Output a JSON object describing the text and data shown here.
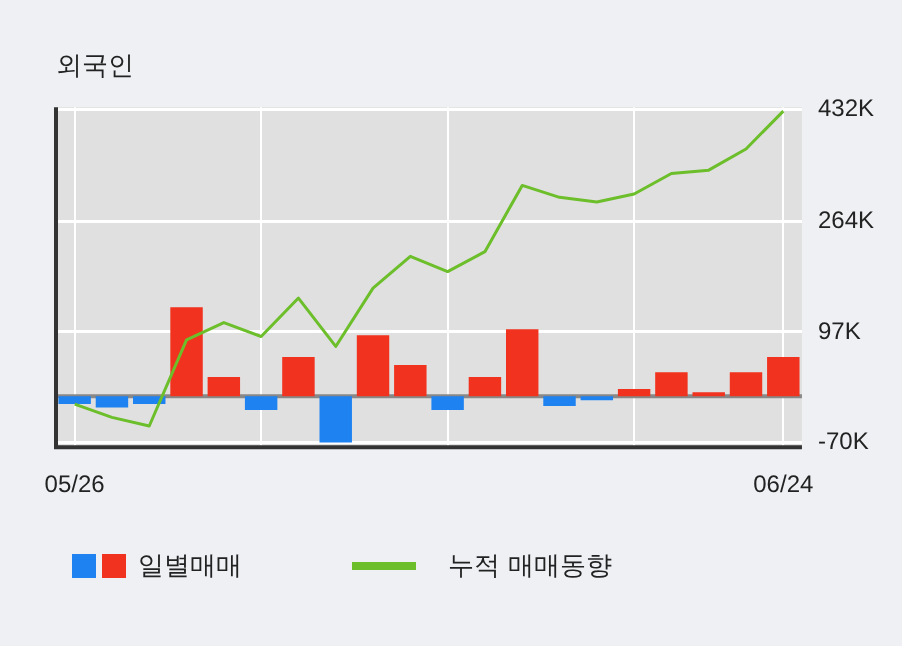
{
  "chart_data": {
    "type": "bar",
    "title": "외국인",
    "categories": [
      "05/26",
      null,
      null,
      null,
      null,
      null,
      null,
      null,
      null,
      null,
      null,
      null,
      null,
      null,
      null,
      null,
      null,
      null,
      null,
      "06/24"
    ],
    "series": [
      {
        "name": "일별매매",
        "colors": [
          "#1e82f0",
          "#1e82f0",
          "#1e82f0",
          "#f0321e",
          "#f0321e",
          "#1e82f0",
          "#f0321e",
          "#1e82f0",
          "#f0321e",
          "#f0321e",
          "#1e82f0",
          "#f0321e",
          "#f0321e",
          "#1e82f0",
          "#1e82f0",
          "#f0321e",
          "#f0321e",
          "#f0321e",
          "#f0321e",
          "#f0321e"
        ],
        "values": [
          -12,
          -17,
          -12,
          134,
          29,
          -21,
          59,
          -70,
          92,
          47,
          -21,
          29,
          101,
          -15,
          -6,
          11,
          36,
          6,
          36,
          59
        ]
      },
      {
        "name": "누적 매매동향",
        "type": "line",
        "color": "#6cbf2a",
        "values": [
          -12,
          -32,
          -45,
          85,
          111,
          90,
          148,
          75,
          163,
          211,
          188,
          218,
          318,
          300,
          293,
          305,
          336,
          341,
          373,
          430
        ]
      }
    ],
    "ylim": [
      -77,
      436
    ],
    "yticks": [
      {
        "value": 432,
        "label": "432K"
      },
      {
        "value": 264,
        "label": "264K"
      },
      {
        "value": 97,
        "label": "97K"
      },
      {
        "value": -70,
        "label": "-70K"
      }
    ],
    "grid": true,
    "legend": "bottom",
    "marker": "none"
  }
}
